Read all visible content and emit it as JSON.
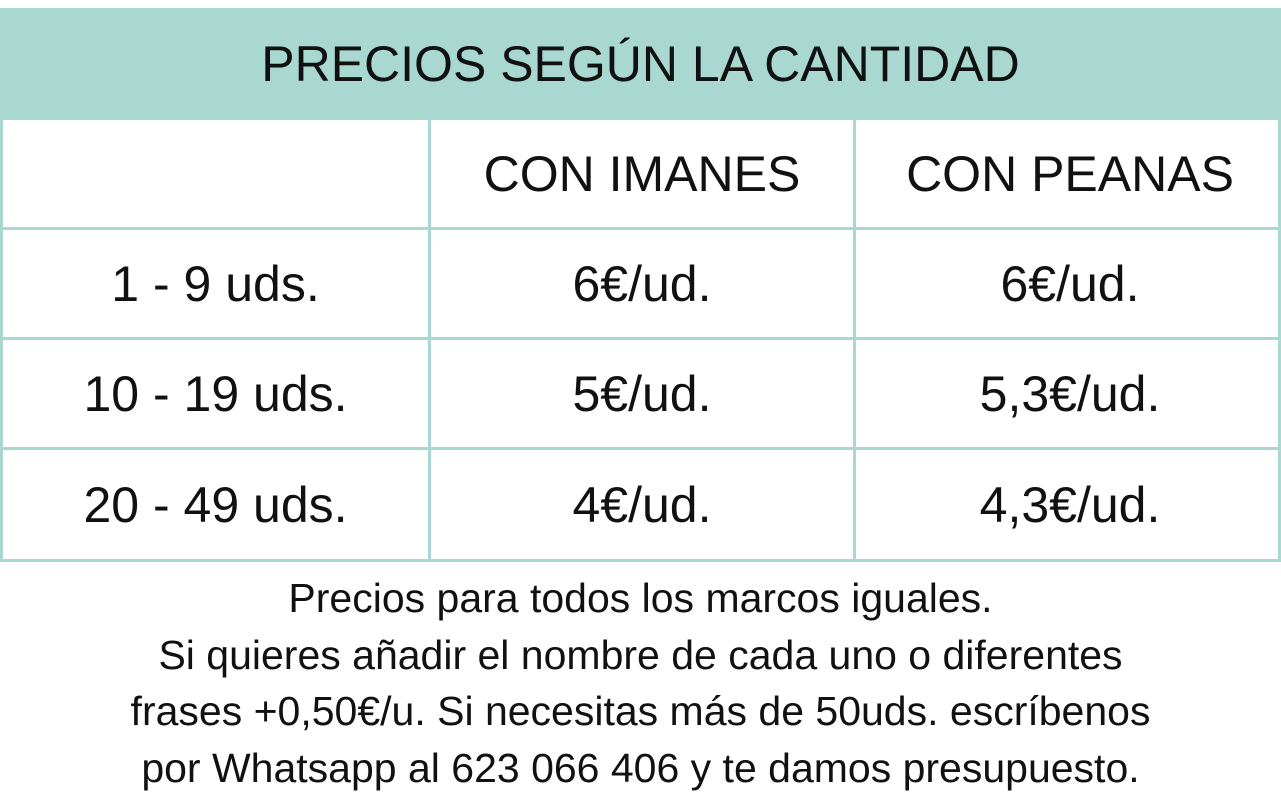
{
  "header": {
    "title": "PRECIOS SEGÚN LA CANTIDAD"
  },
  "table": {
    "columns": [
      "CON IMANES",
      "CON PEANAS"
    ],
    "rows": [
      [
        "1 - 9 uds.",
        "6€/ud.",
        "6€/ud."
      ],
      [
        "10 - 19 uds.",
        "5€/ud.",
        "5,3€/ud."
      ],
      [
        "20 - 49 uds.",
        "4€/ud.",
        "4,3€/ud."
      ]
    ]
  },
  "footer": {
    "lines": [
      "Precios para todos los marcos iguales.",
      "Si quieres añadir el nombre de cada uno o diferentes",
      "frases +0,50€/u. Si necesitas más de 50uds. escríbenos",
      "por Whatsapp al 623 066 406 y te damos presupuesto."
    ]
  }
}
